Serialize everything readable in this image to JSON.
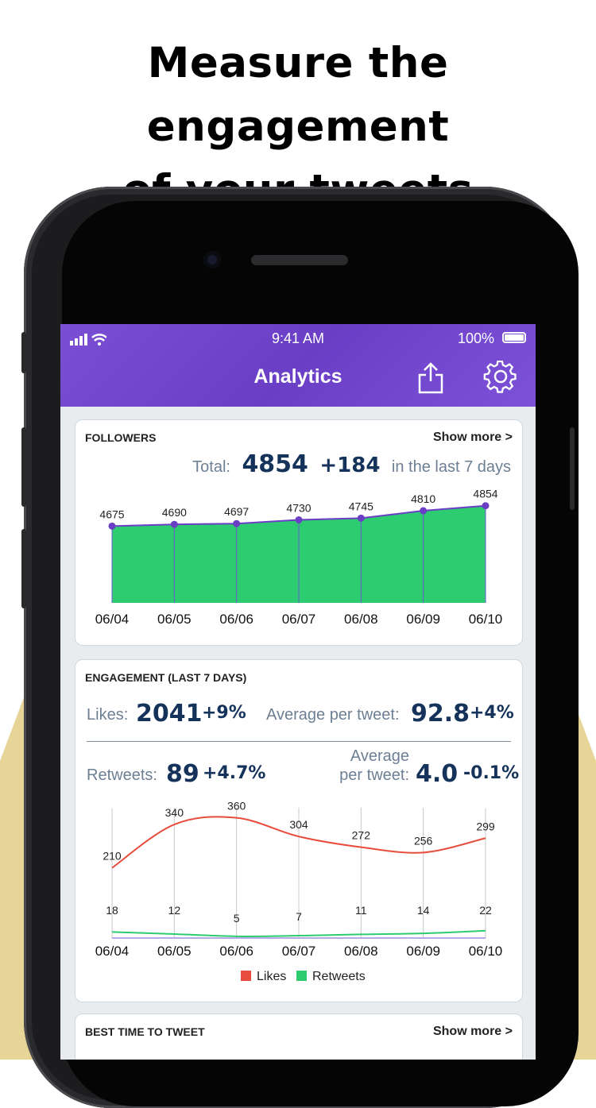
{
  "headline": {
    "line1": "Measure the engagement",
    "line2": "of your tweets"
  },
  "status_bar": {
    "time": "9:41 AM",
    "battery": "100%"
  },
  "nav": {
    "title": "Analytics"
  },
  "followers": {
    "title": "FOLLOWERS",
    "show_more": "Show more >",
    "total_label": "Total:",
    "total_value": "4854",
    "delta": "+184",
    "period": "in the last 7 days"
  },
  "engagement": {
    "title": "ENGAGEMENT (LAST 7 DAYS)",
    "likes_label": "Likes:",
    "likes_value": "2041",
    "likes_delta": "+9%",
    "avg_label": "Average per tweet:",
    "avg_likes_value": "92.8",
    "avg_likes_delta": "+4%",
    "retweets_label": "Retweets:",
    "retweets_value": "89",
    "retweets_delta": "+4.7%",
    "avg_label_line1": "Average",
    "avg_label_line2": "per tweet:",
    "avg_rt_value": "4.0",
    "avg_rt_delta": "-0.1%"
  },
  "best_time": {
    "title": "BEST TIME TO TWEET",
    "show_more": "Show more >"
  },
  "colors": {
    "accent": "#7a4fd4",
    "bar_green": "#2ecc71",
    "likes_red": "#e74c3c",
    "retweets_green": "#2ecc71",
    "point_purple": "#6a3fc6"
  },
  "chart_data": [
    {
      "type": "area",
      "categories": [
        "06/04",
        "06/05",
        "06/06",
        "06/07",
        "06/08",
        "06/09",
        "06/10"
      ],
      "series": [
        {
          "values": [
            4675,
            4690,
            4697,
            4730,
            4745,
            4810,
            4854
          ]
        }
      ]
    },
    {
      "type": "line",
      "categories": [
        "06/04",
        "06/05",
        "06/06",
        "06/07",
        "06/08",
        "06/09",
        "06/10"
      ],
      "series": [
        {
          "name": "Likes",
          "values": [
            210,
            340,
            360,
            304,
            272,
            256,
            299
          ]
        },
        {
          "name": "Retweets",
          "values": [
            18,
            12,
            5,
            7,
            11,
            14,
            22
          ]
        }
      ],
      "legend": "bottom"
    }
  ]
}
